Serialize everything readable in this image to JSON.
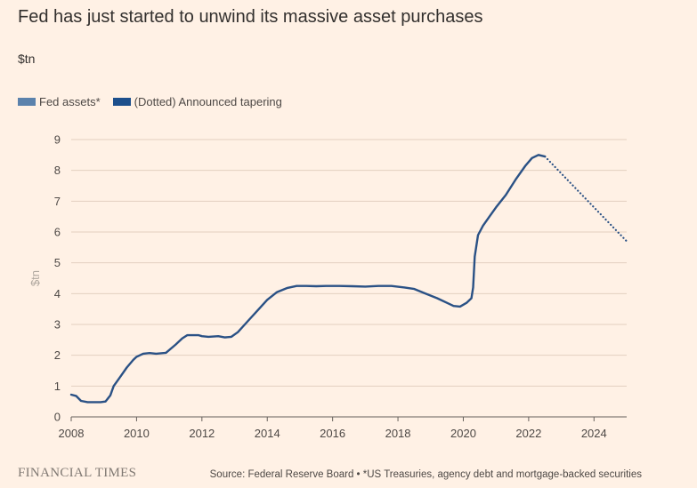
{
  "title": "Fed has just started to unwind its massive asset purchases",
  "subtitle": "$tn",
  "legend": [
    {
      "label": "Fed assets*",
      "color": "#5b82ac"
    },
    {
      "label": "(Dotted) Announced tapering",
      "color": "#1d4f8c"
    }
  ],
  "footer": {
    "brand": "FINANCIAL TIMES",
    "source": "Source: Federal Reserve Board • *US Treasuries, agency debt and mortgage-backed securities"
  },
  "colors": {
    "line": "#2a5185",
    "grid": "#e3cfc0",
    "background": "#fff1e5"
  },
  "chart_data": {
    "type": "line",
    "title": "Fed has just started to unwind its massive asset purchases",
    "ylabel": "$tn",
    "xlabel": "",
    "xlim": [
      2008,
      2025
    ],
    "ylim": [
      0,
      9
    ],
    "x_ticks": [
      2008,
      2010,
      2012,
      2014,
      2016,
      2018,
      2020,
      2022,
      2024
    ],
    "y_ticks": [
      0,
      1,
      2,
      3,
      4,
      5,
      6,
      7,
      8,
      9
    ],
    "grid": "horizontal",
    "legend_position": "top-left",
    "series": [
      {
        "name": "Fed assets*",
        "style": "solid",
        "x": [
          2008.0,
          2008.15,
          2008.3,
          2008.5,
          2008.7,
          2008.9,
          2009.05,
          2009.2,
          2009.3,
          2009.5,
          2009.7,
          2009.9,
          2010.0,
          2010.2,
          2010.4,
          2010.6,
          2010.9,
          2011.2,
          2011.4,
          2011.55,
          2011.9,
          2012.0,
          2012.2,
          2012.5,
          2012.7,
          2012.9,
          2013.1,
          2013.4,
          2013.7,
          2014.0,
          2014.3,
          2014.6,
          2014.9,
          2015.2,
          2015.5,
          2015.8,
          2016.2,
          2016.6,
          2017.0,
          2017.4,
          2017.8,
          2018.2,
          2018.5,
          2018.8,
          2019.2,
          2019.5,
          2019.7,
          2019.9,
          2020.1,
          2020.25,
          2020.3,
          2020.35,
          2020.45,
          2020.6,
          2020.8,
          2021.0,
          2021.3,
          2021.6,
          2021.9,
          2022.1,
          2022.3,
          2022.5
        ],
        "y": [
          0.72,
          0.68,
          0.52,
          0.48,
          0.48,
          0.48,
          0.5,
          0.7,
          1.0,
          1.3,
          1.6,
          1.85,
          1.95,
          2.05,
          2.07,
          2.05,
          2.08,
          2.35,
          2.55,
          2.65,
          2.65,
          2.62,
          2.6,
          2.62,
          2.58,
          2.6,
          2.75,
          3.1,
          3.45,
          3.8,
          4.05,
          4.18,
          4.25,
          4.25,
          4.24,
          4.25,
          4.25,
          4.24,
          4.23,
          4.25,
          4.25,
          4.2,
          4.15,
          4.02,
          3.85,
          3.7,
          3.6,
          3.58,
          3.7,
          3.85,
          4.2,
          5.2,
          5.9,
          6.2,
          6.5,
          6.8,
          7.2,
          7.7,
          8.15,
          8.4,
          8.5,
          8.45
        ]
      },
      {
        "name": "(Dotted) Announced tapering",
        "style": "dotted",
        "x": [
          2022.5,
          2025.0
        ],
        "y": [
          8.45,
          5.7
        ]
      }
    ]
  }
}
